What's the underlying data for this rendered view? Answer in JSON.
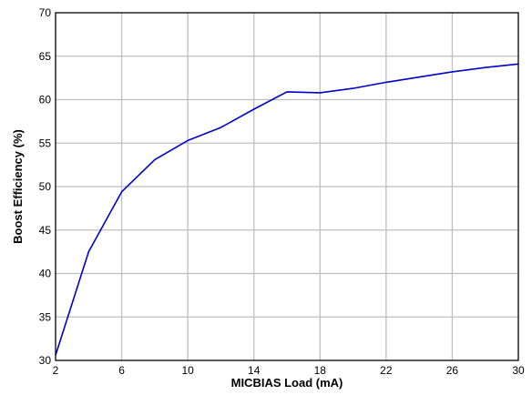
{
  "chart_data": {
    "type": "line",
    "title": "",
    "xlabel": "MICBIAS Load (mA)",
    "ylabel": "Boost Efficiency (%)",
    "xlim": [
      2,
      30
    ],
    "ylim": [
      30,
      70
    ],
    "x_ticks": [
      2,
      6,
      10,
      14,
      18,
      22,
      26,
      30
    ],
    "y_ticks": [
      30,
      35,
      40,
      45,
      50,
      55,
      60,
      65,
      70
    ],
    "grid": true,
    "legend": "none",
    "series": [
      {
        "color": "#0000cc",
        "x": [
          2,
          4,
          6,
          8,
          10,
          12,
          14,
          16,
          18,
          20,
          22,
          24,
          26,
          28,
          30
        ],
        "y": [
          30.6,
          42.5,
          49.4,
          53.1,
          55.3,
          56.8,
          58.9,
          60.9,
          60.8,
          61.3,
          62.0,
          62.6,
          63.2,
          63.7,
          64.1
        ]
      }
    ],
    "colors": {
      "grid": "#bfbfbf",
      "frame": "#000000",
      "line": "#0000cc"
    }
  }
}
